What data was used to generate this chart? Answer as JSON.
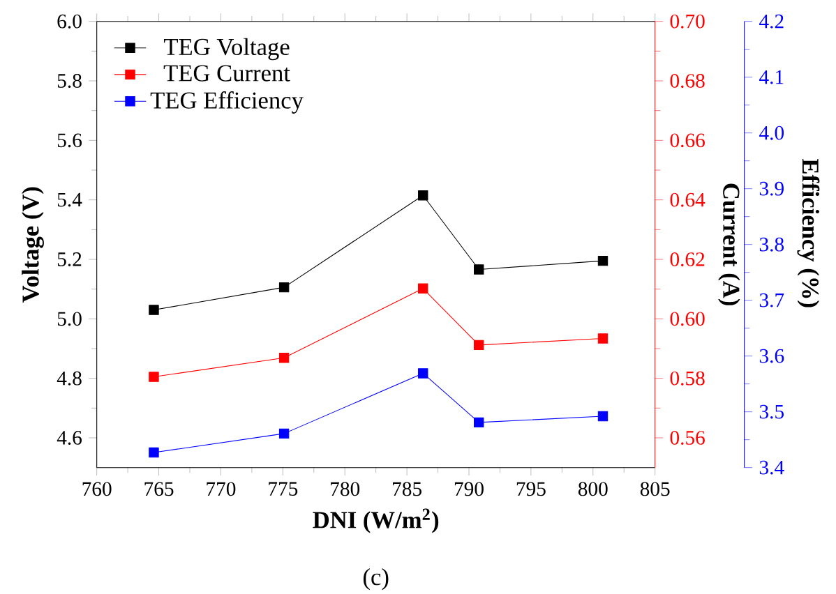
{
  "chart_data": {
    "type": "line",
    "xlabel": "**DNI (W/m$^{2}$)**",
    "ylabel": "Voltage (V)",
    "y2label": "Current (A)",
    "y3label": "Efficiency (%)",
    "x": [
      764.6,
      775.1,
      786.3,
      790.8,
      800.8
    ],
    "series": [
      {
        "name": "TEG Voltage",
        "color": "#000000",
        "axis": "y",
        "values": [
          5.03,
          5.106,
          5.415,
          5.166,
          5.195
        ]
      },
      {
        "name": "TEG Current",
        "color": "#ff0000",
        "axis": "y2",
        "values": [
          0.5805,
          0.5869,
          0.6102,
          0.5912,
          0.5934
        ]
      },
      {
        "name": "TEG Efficiency",
        "color": "#0000ff",
        "axis": "y3",
        "values": [
          3.427,
          3.461,
          3.569,
          3.481,
          3.492
        ]
      }
    ],
    "xlim": [
      760,
      805
    ],
    "xticks": [
      760,
      765,
      770,
      775,
      780,
      785,
      790,
      795,
      800,
      805
    ],
    "ylim": [
      4.5,
      6.0
    ],
    "yticks": [
      4.6,
      4.8,
      {
        "value": 5,
        "label": "5.0"
      },
      5.2,
      5.4,
      5.6,
      5.8,
      {
        "value": 6,
        "label": "6.0"
      }
    ],
    "y2lim": [
      0.55,
      0.7
    ],
    "y2ticks": [
      0.56,
      0.58,
      {
        "value": 0.6,
        "label": "0.60"
      },
      0.62,
      0.64,
      0.66,
      0.68,
      {
        "value": 0.7,
        "label": "0.70"
      }
    ],
    "y3lim": [
      3.4,
      4.2
    ],
    "y3ticks": [
      3.4,
      3.5,
      3.6,
      3.7,
      3.8,
      3.9,
      {
        "value": 4,
        "label": "4.0"
      },
      4.1,
      4.2
    ],
    "marker": "square",
    "line_style": "solid",
    "legend": "top left",
    "grid": false,
    "annotations": [
      "(c)"
    ]
  }
}
